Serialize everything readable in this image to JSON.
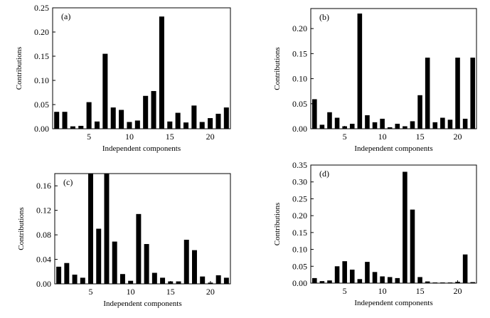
{
  "chart_data": [
    {
      "type": "bar",
      "panel_label": "(a)",
      "xlabel": "Independent components",
      "ylabel": "Contributions",
      "xlim": [
        0.5,
        22.5
      ],
      "ylim": [
        0,
        0.25
      ],
      "xticks": [
        5,
        10,
        15,
        20
      ],
      "yticks": [
        0,
        0.05,
        0.1,
        0.15,
        0.2,
        0.25
      ],
      "ytick_labels": [
        "0.00",
        "0.05",
        "0.10",
        "0.15",
        "0.20",
        "0.25"
      ],
      "x": [
        1,
        2,
        3,
        4,
        5,
        6,
        7,
        8,
        9,
        10,
        11,
        12,
        13,
        14,
        15,
        16,
        17,
        18,
        19,
        20,
        21,
        22
      ],
      "values": [
        0.035,
        0.035,
        0.005,
        0.006,
        0.055,
        0.015,
        0.155,
        0.044,
        0.039,
        0.014,
        0.017,
        0.068,
        0.078,
        0.232,
        0.015,
        0.033,
        0.013,
        0.048,
        0.014,
        0.022,
        0.031,
        0.044
      ]
    },
    {
      "type": "bar",
      "panel_label": "(b)",
      "xlabel": "Independent components",
      "ylabel": "Contributions",
      "xlim": [
        0.5,
        22.5
      ],
      "ylim": [
        0,
        0.24
      ],
      "xticks": [
        5,
        10,
        15,
        20
      ],
      "yticks": [
        0,
        0.05,
        0.1,
        0.15,
        0.2
      ],
      "ytick_labels": [
        "0.00",
        "0.05",
        "0.10",
        "0.15",
        "0.20"
      ],
      "x": [
        1,
        2,
        3,
        4,
        5,
        6,
        7,
        8,
        9,
        10,
        11,
        12,
        13,
        14,
        15,
        16,
        17,
        18,
        19,
        20,
        21,
        22
      ],
      "values": [
        0.059,
        0.008,
        0.033,
        0.022,
        0.005,
        0.01,
        0.23,
        0.027,
        0.013,
        0.02,
        0.003,
        0.01,
        0.005,
        0.015,
        0.067,
        0.142,
        0.013,
        0.022,
        0.018,
        0.142,
        0.02,
        0.142
      ]
    },
    {
      "type": "bar",
      "panel_label": "(c)",
      "xlabel": "Independent components",
      "ylabel": "Contributions",
      "xlim": [
        0.5,
        22.5
      ],
      "ylim": [
        0,
        0.18
      ],
      "xticks": [
        5,
        10,
        15,
        20
      ],
      "yticks": [
        0,
        0.04,
        0.08,
        0.12,
        0.16
      ],
      "ytick_labels": [
        "0.00",
        "0.04",
        "0.08",
        "0.12",
        "0.16"
      ],
      "x": [
        1,
        2,
        3,
        4,
        5,
        6,
        7,
        8,
        9,
        10,
        11,
        12,
        13,
        14,
        15,
        16,
        17,
        18,
        19,
        20,
        21,
        22
      ],
      "values": [
        0.028,
        0.034,
        0.015,
        0.01,
        0.18,
        0.09,
        0.18,
        0.069,
        0.016,
        0.005,
        0.114,
        0.065,
        0.018,
        0.01,
        0.004,
        0.004,
        0.072,
        0.055,
        0.012,
        0.002,
        0.014,
        0.01
      ]
    },
    {
      "type": "bar",
      "panel_label": "(d)",
      "xlabel": "Independent components",
      "ylabel": "Contributions",
      "xlim": [
        0.5,
        22.5
      ],
      "ylim": [
        0,
        0.35
      ],
      "xticks": [
        5,
        10,
        15,
        20
      ],
      "yticks": [
        0,
        0.05,
        0.1,
        0.15,
        0.2,
        0.25,
        0.3,
        0.35
      ],
      "ytick_labels": [
        "0.00",
        "0.05",
        "0.10",
        "0.15",
        "0.20",
        "0.25",
        "0.30",
        "0.35"
      ],
      "x": [
        1,
        2,
        3,
        4,
        5,
        6,
        7,
        8,
        9,
        10,
        11,
        12,
        13,
        14,
        15,
        16,
        17,
        18,
        19,
        20,
        21,
        22
      ],
      "values": [
        0.015,
        0.006,
        0.008,
        0.05,
        0.065,
        0.04,
        0.012,
        0.063,
        0.033,
        0.02,
        0.018,
        0.015,
        0.33,
        0.218,
        0.018,
        0.005,
        0.002,
        0.002,
        0.002,
        0.004,
        0.085,
        0.003
      ]
    }
  ]
}
